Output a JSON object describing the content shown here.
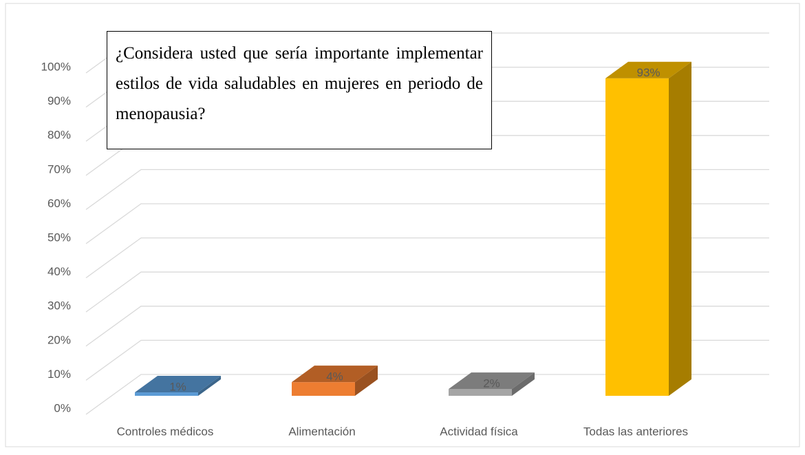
{
  "chart_data": {
    "type": "bar3d",
    "title": "¿Considera usted que sería importante implementar estilos de vida saludables en mujeres en periodo de menopausia?",
    "categories": [
      "Controles médicos",
      "Alimentación",
      "Actividad física",
      "Todas las anteriores"
    ],
    "values": [
      1,
      4,
      2,
      93
    ],
    "value_labels": [
      "1%",
      "4%",
      "2%",
      "93%"
    ],
    "colors": [
      "#5b9bd5",
      "#ed7d31",
      "#a5a5a5",
      "#ffc000"
    ],
    "ylim": [
      0,
      100
    ],
    "yticks": [
      {
        "value": 0,
        "label": "0%"
      },
      {
        "value": 10,
        "label": "10%"
      },
      {
        "value": 20,
        "label": "20%"
      },
      {
        "value": 30,
        "label": "30%"
      },
      {
        "value": 40,
        "label": "40%"
      },
      {
        "value": 50,
        "label": "50%"
      },
      {
        "value": 60,
        "label": "60%"
      },
      {
        "value": 70,
        "label": "70%"
      },
      {
        "value": 80,
        "label": "80%"
      },
      {
        "value": 90,
        "label": "90%"
      },
      {
        "value": 100,
        "label": "100%"
      }
    ],
    "grid": true
  }
}
